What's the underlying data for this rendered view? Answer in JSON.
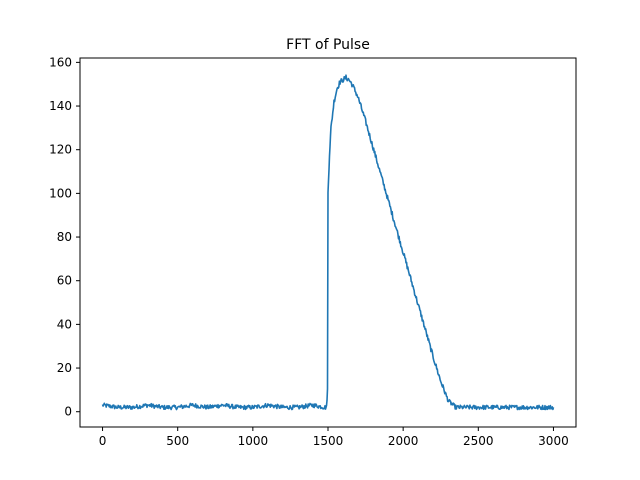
{
  "chart_data": {
    "type": "line",
    "title": "FFT of Pulse",
    "xlabel": "",
    "ylabel": "",
    "xlim": [
      -150,
      3150
    ],
    "ylim": [
      -7,
      162
    ],
    "xticks": [
      0,
      500,
      1000,
      1500,
      2000,
      2500,
      3000
    ],
    "yticks": [
      0,
      20,
      40,
      60,
      80,
      100,
      120,
      140,
      160
    ],
    "grid": false,
    "legend": "none",
    "series": [
      {
        "color": "#1f77b4",
        "x": [
          0,
          100,
          200,
          300,
          400,
          500,
          600,
          700,
          800,
          900,
          1000,
          1100,
          1200,
          1300,
          1400,
          1480,
          1490,
          1497,
          1500,
          1503,
          1510,
          1520,
          1540,
          1560,
          1580,
          1600,
          1620,
          1640,
          1660,
          1680,
          1700,
          1750,
          1800,
          1850,
          1900,
          1950,
          2000,
          2050,
          2100,
          2150,
          2200,
          2250,
          2300,
          2350,
          2380,
          2395,
          2420,
          2500,
          2600,
          2700,
          2800,
          2900,
          3000
        ],
        "y": [
          3,
          2,
          2,
          3,
          2,
          2,
          3,
          2,
          3,
          2,
          2,
          3,
          2,
          2,
          3,
          2,
          2,
          10,
          100,
          106,
          118,
          130,
          142,
          148,
          151,
          152,
          153,
          152,
          150,
          147,
          144,
          133,
          121,
          109,
          97,
          85,
          73,
          61,
          49,
          37,
          25,
          14,
          5,
          2,
          2,
          2,
          2,
          2,
          2,
          2,
          2,
          2,
          2
        ]
      }
    ]
  }
}
